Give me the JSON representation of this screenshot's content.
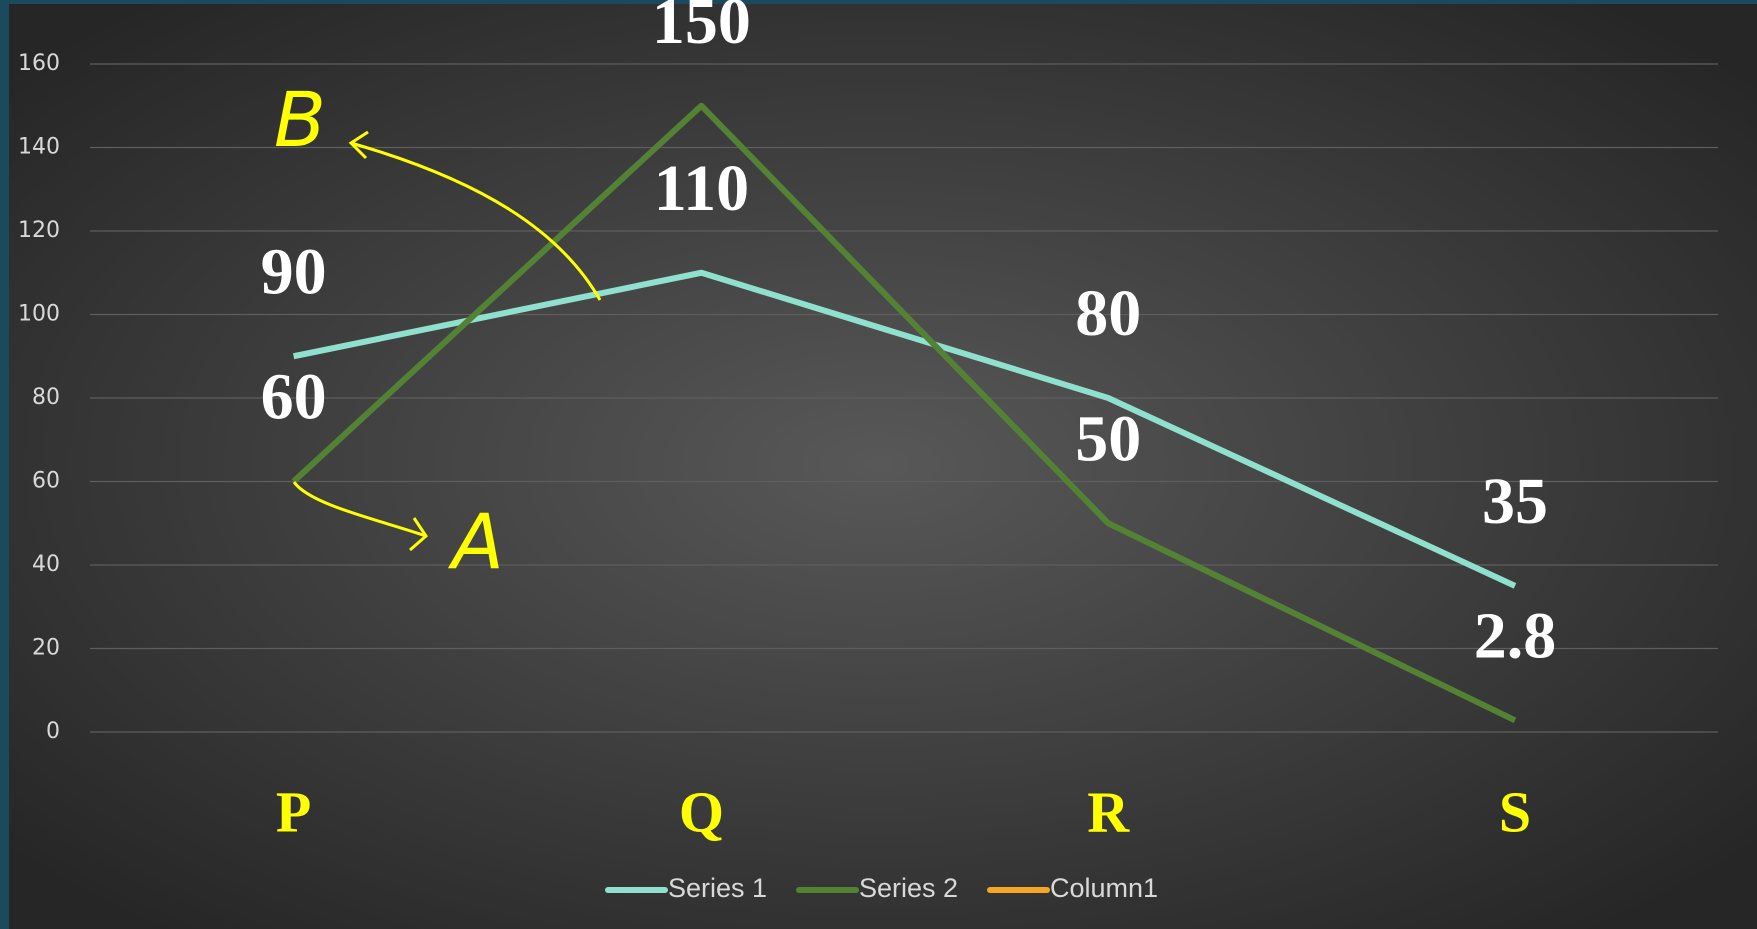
{
  "chart_data": {
    "type": "line",
    "categories": [
      "P",
      "Q",
      "R",
      "S"
    ],
    "series": [
      {
        "name": "Series 1",
        "color": "#8fe0cf",
        "values": [
          90,
          110,
          80,
          35
        ]
      },
      {
        "name": "Series 2",
        "color": "#548235",
        "values": [
          60,
          150,
          50,
          2.8
        ]
      },
      {
        "name": "Column1",
        "color": "#f5a623",
        "values": [
          null,
          null,
          null,
          null
        ]
      }
    ],
    "ylim": [
      0,
      160
    ],
    "yticks": [
      0,
      20,
      40,
      60,
      80,
      100,
      120,
      140,
      160
    ],
    "grid": true,
    "legend": "bottom",
    "annotations": [
      "B",
      "A"
    ]
  }
}
